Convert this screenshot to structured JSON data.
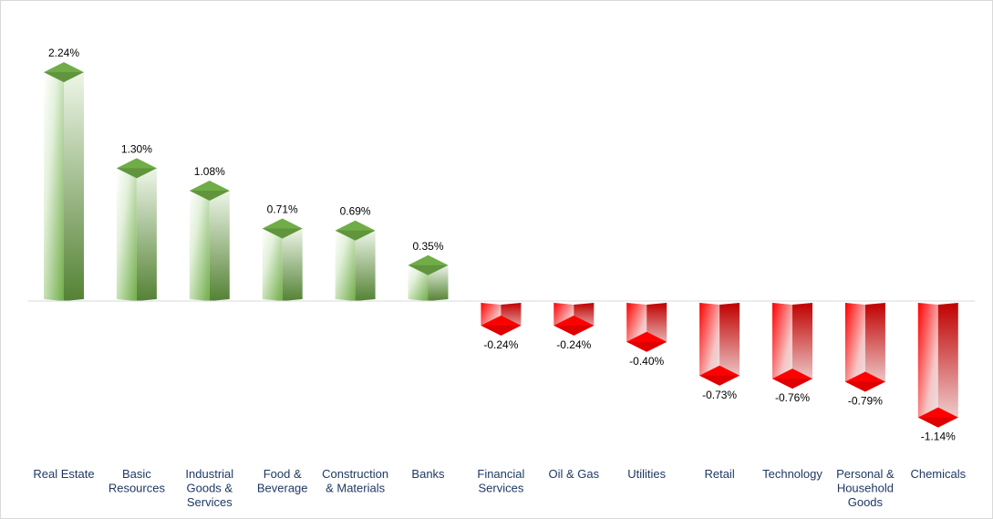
{
  "chart_data": {
    "type": "bar",
    "categories": [
      "Real Estate",
      "Basic Resources",
      "Industrial Goods & Services",
      "Food & Beverage",
      "Construction & Materials",
      "Banks",
      "Financial Services",
      "Oil & Gas",
      "Utilities",
      "Retail",
      "Technology",
      "Personal & Household Goods",
      "Chemicals"
    ],
    "category_label_lines": [
      [
        "Real Estate"
      ],
      [
        "Basic",
        "Resources"
      ],
      [
        "Industrial",
        "Goods &",
        "Services"
      ],
      [
        "Food &",
        "Beverage"
      ],
      [
        "Construction",
        "& Materials"
      ],
      [
        "Banks"
      ],
      [
        "Financial",
        "Services"
      ],
      [
        "Oil & Gas"
      ],
      [
        "Utilities"
      ],
      [
        "Retail"
      ],
      [
        "Technology"
      ],
      [
        "Personal &",
        "Household",
        "Goods"
      ],
      [
        "Chemicals"
      ]
    ],
    "values": [
      2.24,
      1.3,
      1.08,
      0.71,
      0.69,
      0.35,
      -0.24,
      -0.24,
      -0.4,
      -0.73,
      -0.76,
      -0.79,
      -1.14
    ],
    "data_labels": [
      "2.24%",
      "1.30%",
      "1.08%",
      "0.71%",
      "0.69%",
      "0.35%",
      "-0.24%",
      "-0.24%",
      "-0.40%",
      "-0.73%",
      "-0.76%",
      "-0.79%",
      "-1.14%"
    ],
    "unit": "%",
    "title": "",
    "xlabel": "",
    "ylabel": "",
    "ylim": [
      -1.6,
      2.6
    ],
    "grid": false,
    "legend": "none",
    "style": "3d-column",
    "colors": {
      "positive": "#70ad47",
      "positive_dark": "#548235",
      "negative": "#ff0000",
      "negative_dark": "#c00000",
      "category_text": "#1f3864",
      "axis_line": "#d9d9d9"
    }
  }
}
